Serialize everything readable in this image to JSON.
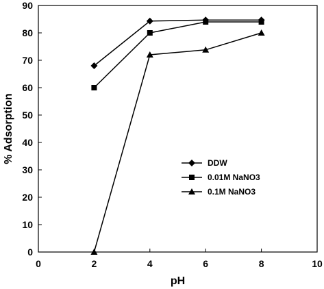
{
  "chart_data": {
    "type": "line",
    "xlabel": "pH",
    "ylabel": "% Adsorption",
    "xlim": [
      0,
      10
    ],
    "ylim": [
      0,
      90
    ],
    "xticks": [
      0,
      2,
      4,
      6,
      8,
      10
    ],
    "yticks": [
      0,
      10,
      20,
      30,
      40,
      50,
      60,
      70,
      80,
      90
    ],
    "grid": false,
    "legend_position": "middle-right",
    "x": [
      2,
      4,
      6,
      8
    ],
    "series": [
      {
        "name": "DDW",
        "marker": "diamond",
        "color": "#000000",
        "values": [
          68,
          84.3,
          84.7,
          84.7
        ]
      },
      {
        "name": "0.01M NaNO3",
        "marker": "square",
        "color": "#000000",
        "values": [
          60,
          80,
          84,
          84
        ]
      },
      {
        "name": "0.1M NaNO3",
        "marker": "triangle",
        "color": "#000000",
        "values": [
          0,
          72,
          73.8,
          80
        ]
      }
    ]
  }
}
